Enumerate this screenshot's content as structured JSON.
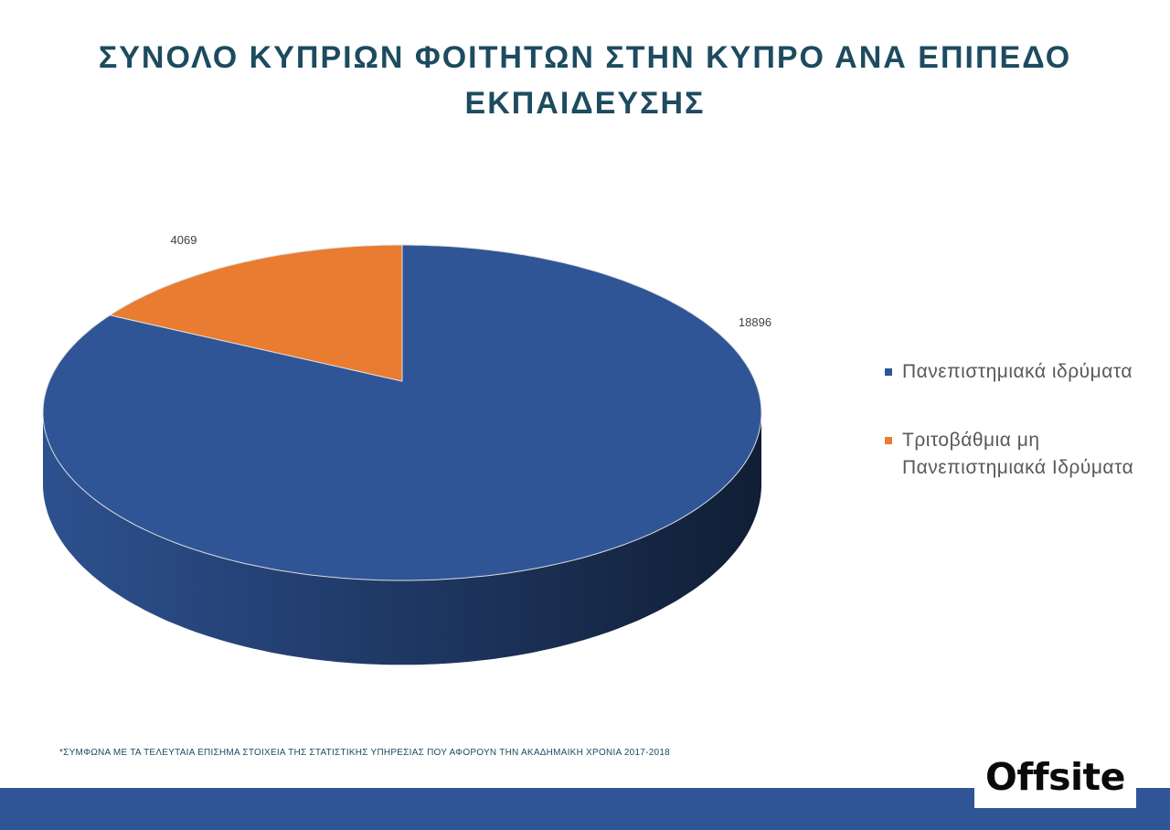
{
  "chart_data": {
    "type": "pie",
    "three_d": true,
    "title": "ΣΥΝΟΛΟ ΚΥΠΡΙΩΝ ΦΟΙΤΗΤΩΝ ΣΤΗΝ ΚΥΠΡΟ ΑΝΑ ΕΠΙΠΕΔΟ ΕΚΠΑΙΔΕΥΣΗΣ",
    "categories": [
      "Πανεπιστημιακά ιδρύματα",
      "Τριτοβάθμια μη Πανεπιστημιακά Ιδρύματα"
    ],
    "values": [
      18896,
      4069
    ],
    "colors": [
      "#2f5597",
      "#e97c30"
    ],
    "legend": "right"
  },
  "footnote": "*ΣΥΜΦΩΝΑ ΜΕ ΤΑ ΤΕΛΕΥΤΑΙΑ ΕΠΙΣΗΜΑ ΣΤΟΙΧΕΙΑ ΤΗΣ ΣΤΑΤΙΣΤΙΚΗΣ ΥΠΗΡΕΣΙΑΣ ΠΟΥ ΑΦΟΡΟΥΝ ΤΗΝ ΑΚΑΔΗΜΑΙΚΗ ΧΡΟΝΙΑ 2017-2018",
  "logo": {
    "text": "Offsite"
  },
  "colors": {
    "title": "#1d4b5f",
    "footer_band": "#2f5597",
    "logo_background": "#ffffff"
  }
}
